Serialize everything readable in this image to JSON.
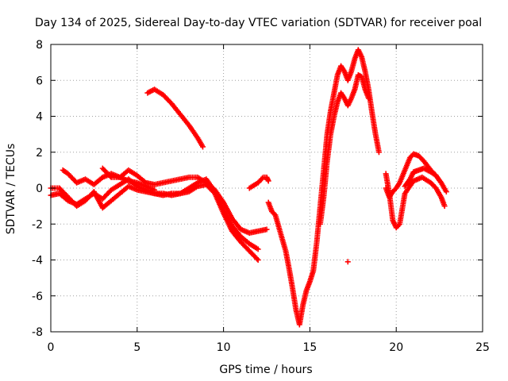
{
  "chart_data": {
    "type": "scatter",
    "title": "Day 134 of 2025, Sidereal Day-to-day VTEC variation (SDTVAR) for receiver poal",
    "xlabel": "GPS time / hours",
    "ylabel": "SDTVAR / TECUs",
    "xlim": [
      0,
      25
    ],
    "ylim": [
      -8,
      8
    ],
    "xticks": [
      0,
      5,
      10,
      15,
      20,
      25
    ],
    "yticks": [
      -8,
      -6,
      -4,
      -2,
      0,
      2,
      4,
      6,
      8
    ],
    "grid": true,
    "marker": "+",
    "color": "#ff0000",
    "series": [
      {
        "name": "s1",
        "x": [
          0.0,
          0.5,
          1.0,
          1.5,
          2.0,
          2.5,
          3.0,
          3.5,
          4.0,
          4.5,
          5.0,
          5.5,
          6.0,
          6.5,
          7.0,
          7.5,
          8.0,
          8.5,
          9.0,
          9.5,
          10.0,
          10.5,
          11.0,
          11.5,
          12.0
        ],
        "y": [
          -0.4,
          -0.3,
          -0.7,
          -0.9,
          -0.6,
          -0.3,
          -0.6,
          -0.1,
          0.2,
          0.5,
          0.1,
          -0.1,
          -0.3,
          -0.4,
          -0.3,
          -0.3,
          -0.2,
          0.1,
          0.2,
          -0.3,
          -1.4,
          -2.4,
          -3.0,
          -3.5,
          -4.0
        ]
      },
      {
        "name": "s2",
        "x": [
          0.0,
          0.5,
          1.0,
          1.5,
          2.0,
          2.5,
          3.0,
          3.5,
          4.0,
          4.5,
          5.0,
          5.5,
          6.0,
          6.5,
          7.0,
          7.5,
          8.0,
          8.5,
          9.0,
          9.5,
          10.0,
          10.5,
          11.0,
          11.5,
          12.0
        ],
        "y": [
          0.0,
          0.0,
          -0.5,
          -1.0,
          -0.7,
          -0.2,
          -1.1,
          -0.7,
          -0.3,
          0.1,
          -0.1,
          -0.2,
          -0.3,
          -0.3,
          -0.4,
          -0.3,
          0.0,
          0.3,
          0.5,
          -0.2,
          -1.2,
          -2.1,
          -2.7,
          -3.1,
          -3.4
        ]
      },
      {
        "name": "s3",
        "x": [
          0.7,
          1.0,
          1.5,
          2.0,
          2.5,
          3.0,
          3.5,
          4.0,
          4.5,
          5.0,
          5.5,
          6.0
        ],
        "y": [
          1.0,
          0.8,
          0.3,
          0.5,
          0.2,
          0.6,
          0.8,
          0.6,
          0.4,
          0.3,
          0.1,
          -0.1
        ]
      },
      {
        "name": "s4",
        "x": [
          3.0,
          3.5,
          4.0,
          4.5,
          5.0,
          5.5,
          6.0,
          7.0,
          8.0,
          8.5,
          9.0,
          9.5,
          10.0,
          10.5,
          11.0,
          11.5,
          12.0,
          12.5
        ],
        "y": [
          1.1,
          0.6,
          0.6,
          1.0,
          0.7,
          0.3,
          0.2,
          0.4,
          0.6,
          0.6,
          0.3,
          -0.1,
          -0.8,
          -1.7,
          -2.3,
          -2.5,
          -2.4,
          -2.3
        ]
      },
      {
        "name": "s5",
        "x": [
          5.6,
          6.0,
          6.5,
          7.0,
          7.5,
          8.0,
          8.5,
          8.8
        ],
        "y": [
          5.3,
          5.5,
          5.2,
          4.7,
          4.1,
          3.5,
          2.8,
          2.3
        ]
      },
      {
        "name": "s6",
        "x": [
          11.5,
          12.0,
          12.3,
          12.5,
          12.6
        ],
        "y": [
          0.0,
          0.3,
          0.6,
          0.6,
          0.4
        ]
      },
      {
        "name": "s7",
        "x": [
          12.6,
          12.8,
          13.0,
          13.3,
          13.6,
          13.8,
          14.0,
          14.2,
          14.4,
          14.6,
          14.8,
          15.0,
          15.2,
          15.4,
          15.6,
          15.8,
          16.0,
          16.2,
          16.4,
          16.6,
          16.8,
          17.0,
          17.2,
          17.4,
          17.6,
          17.8,
          18.0,
          18.2,
          18.4,
          18.6,
          18.8,
          19.0
        ],
        "y": [
          -0.8,
          -1.3,
          -1.5,
          -2.5,
          -3.5,
          -4.5,
          -5.6,
          -6.8,
          -7.6,
          -6.5,
          -5.7,
          -5.2,
          -4.6,
          -3.0,
          -1.0,
          1.0,
          3.0,
          4.3,
          5.3,
          6.3,
          6.8,
          6.5,
          6.0,
          6.5,
          7.2,
          7.7,
          7.3,
          6.5,
          5.5,
          4.2,
          3.0,
          2.0
        ]
      },
      {
        "name": "s8",
        "x": [
          15.6,
          15.8,
          16.0,
          16.2,
          16.4,
          16.6,
          16.8,
          17.0,
          17.2,
          17.4,
          17.6,
          17.8,
          18.0,
          18.2,
          18.4
        ],
        "y": [
          -2.0,
          -0.5,
          1.5,
          3.0,
          4.0,
          4.8,
          5.3,
          5.0,
          4.6,
          5.0,
          5.5,
          6.3,
          6.2,
          5.5,
          5.0
        ]
      },
      {
        "name": "s9",
        "x": [
          17.2
        ],
        "y": [
          -4.1
        ]
      },
      {
        "name": "s10",
        "x": [
          19.4,
          19.6,
          19.8,
          20.0,
          20.2,
          20.5,
          21.0,
          21.5,
          22.0,
          22.3,
          22.6,
          22.8
        ],
        "y": [
          0.8,
          -0.3,
          -1.8,
          -2.2,
          -2.0,
          -0.3,
          0.4,
          0.6,
          0.3,
          0.0,
          -0.5,
          -1.0
        ]
      },
      {
        "name": "s11",
        "x": [
          19.4,
          19.6,
          19.8,
          20.0,
          20.2,
          20.5,
          20.8,
          21.0,
          21.3,
          21.6,
          22.0,
          22.3,
          22.6,
          22.9
        ],
        "y": [
          0.0,
          -0.5,
          -0.2,
          0.0,
          0.3,
          1.0,
          1.7,
          1.9,
          1.8,
          1.5,
          1.0,
          0.7,
          0.3,
          -0.2
        ]
      },
      {
        "name": "s12",
        "x": [
          20.5,
          20.8,
          21.0,
          21.3,
          21.6,
          22.0,
          22.3
        ],
        "y": [
          0.1,
          0.5,
          0.9,
          1.0,
          1.1,
          0.9,
          0.7
        ]
      }
    ]
  }
}
